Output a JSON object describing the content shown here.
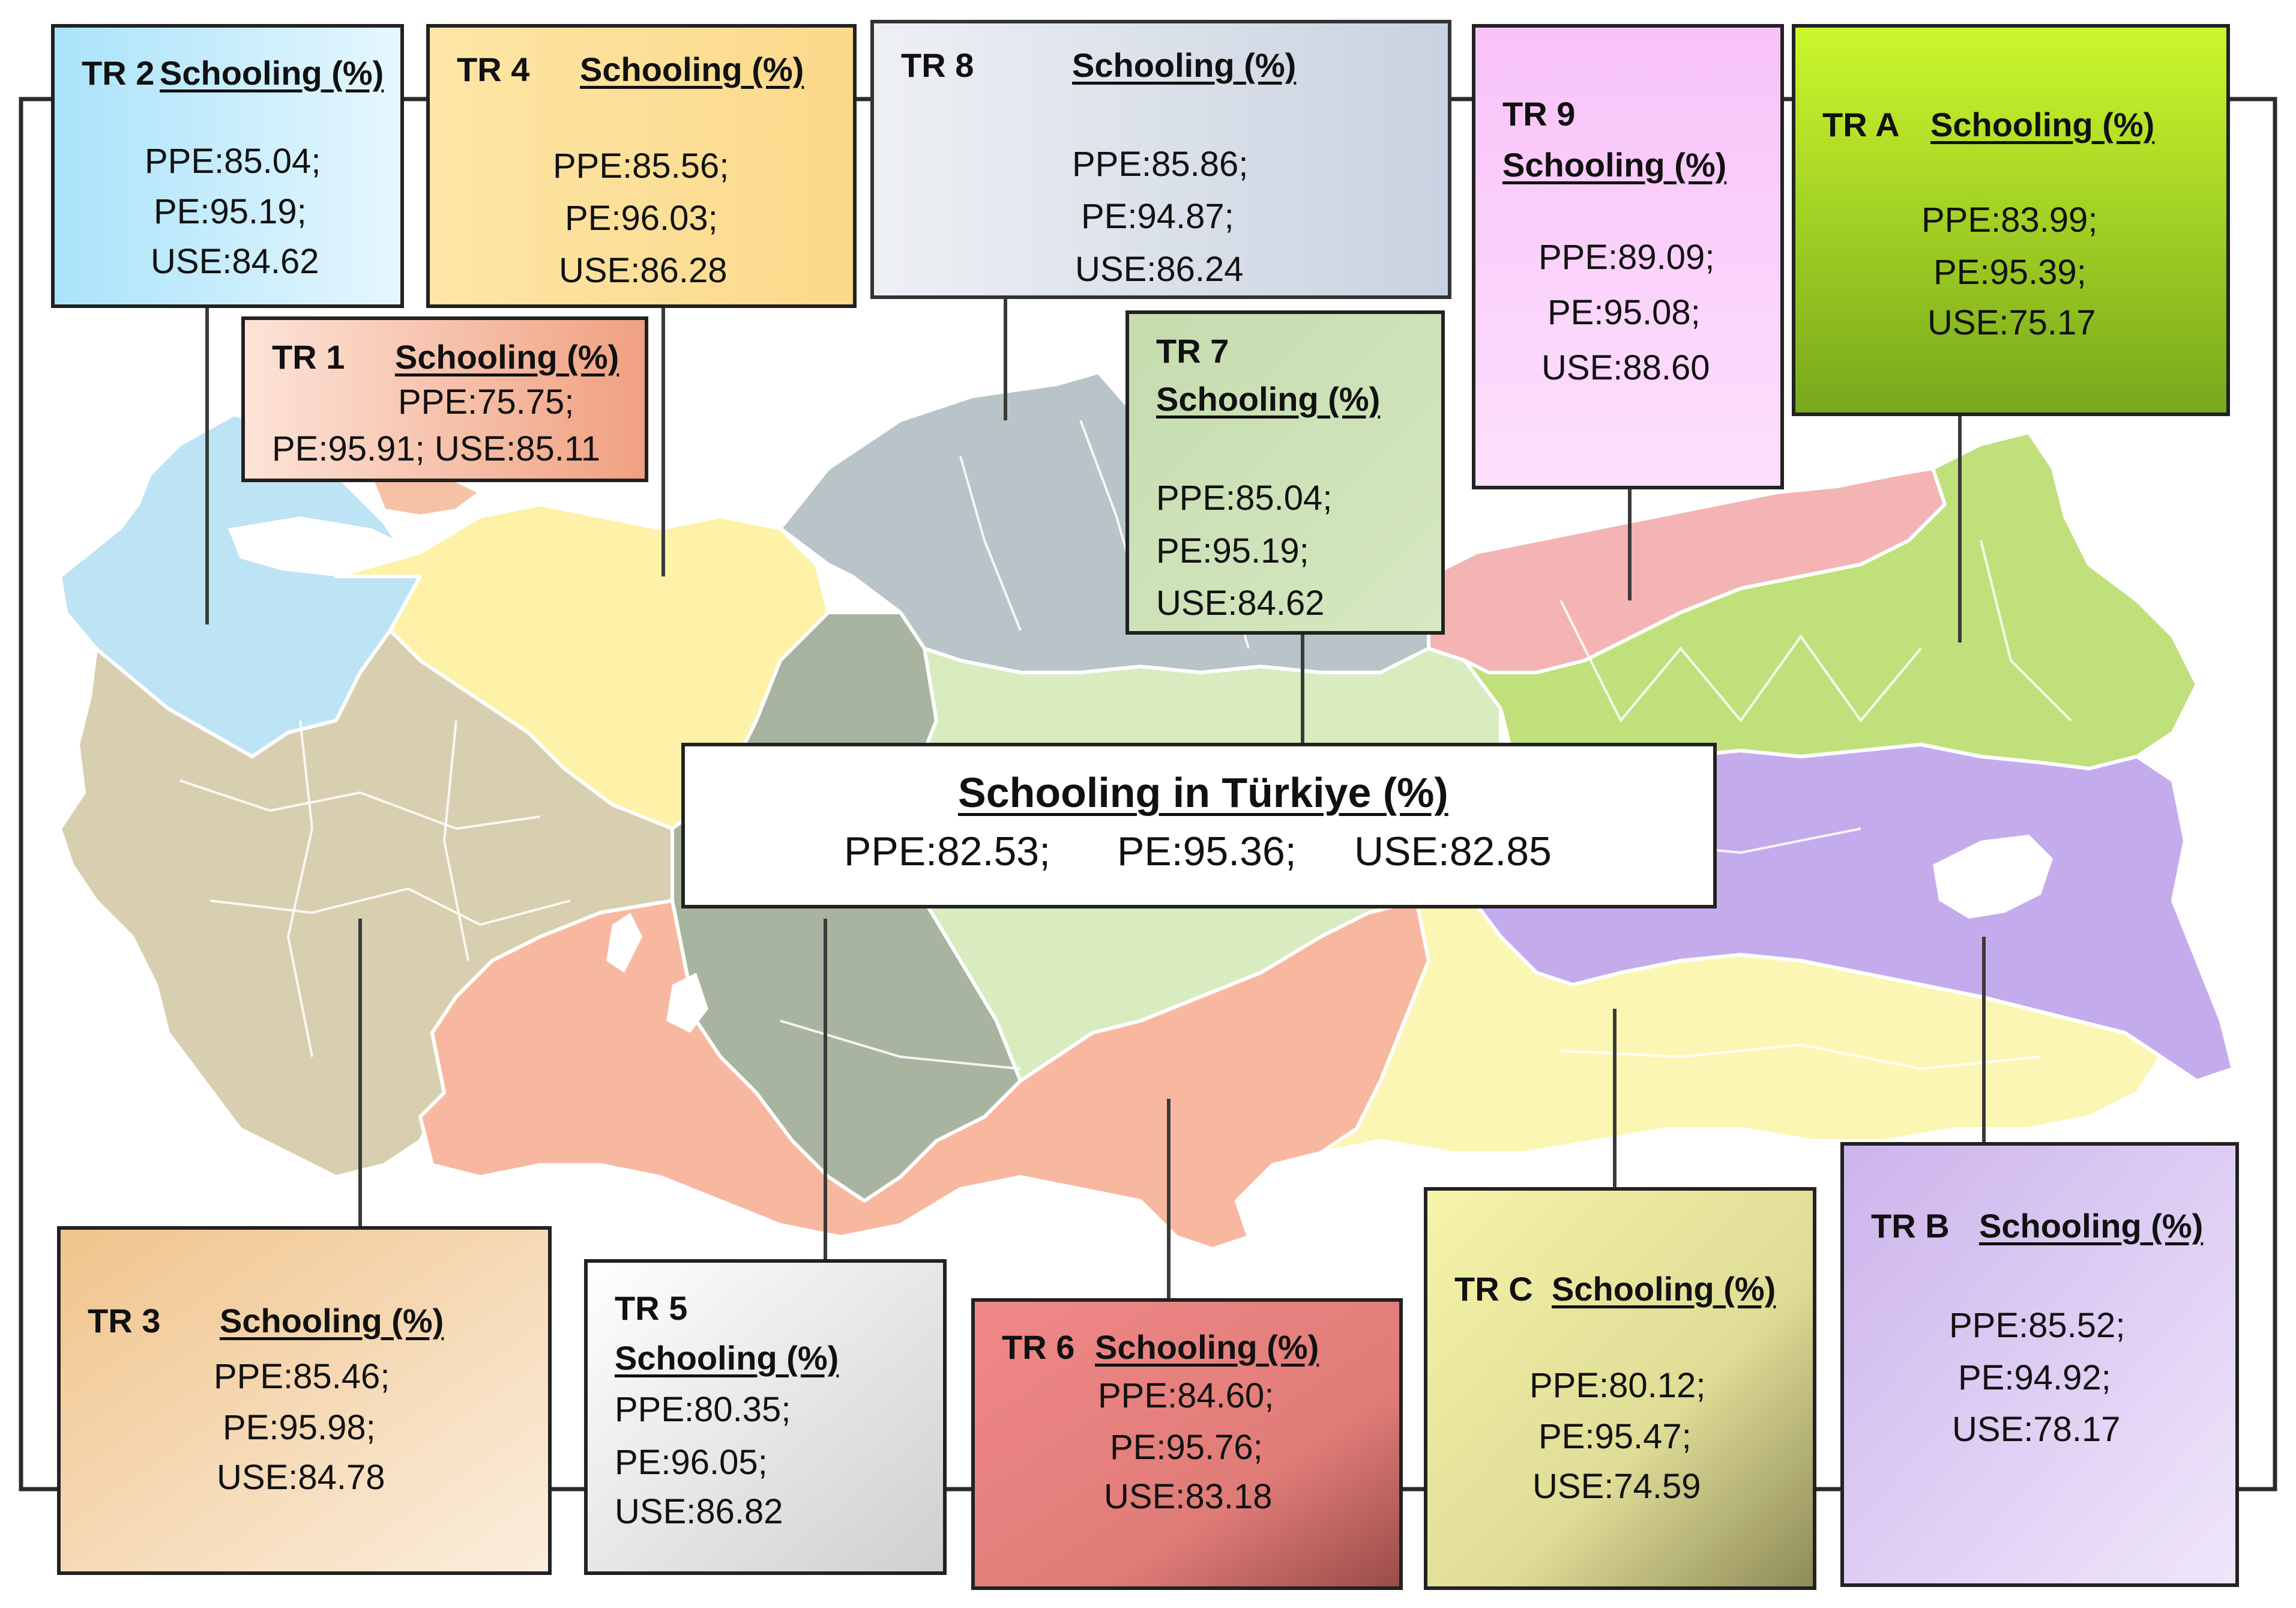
{
  "national": {
    "title": "Schooling in Türkiye (%)",
    "ppe": "PPE:82.53;",
    "pe": "PE:95.36;",
    "use": "USE:82.85"
  },
  "regions": {
    "tr1": {
      "code": "TR 1",
      "heading": "Schooling (%)",
      "line1": "PPE:75.75;",
      "line2": "PE:95.91; USE:85.11",
      "color": "#f6b49c"
    },
    "tr2": {
      "code": "TR 2",
      "heading": "Schooling (%)",
      "ppe": "PPE:85.04;",
      "pe": "PE:95.19;",
      "use": "USE:84.62",
      "color": "#a8dcf4"
    },
    "tr3": {
      "code": "TR 3",
      "heading": "Schooling (%)",
      "ppe": "PPE:85.46;",
      "pe": "PE:95.98;",
      "use": "USE:84.78",
      "color": "#f0c590"
    },
    "tr4": {
      "code": "TR 4",
      "heading": "Schooling (%)",
      "ppe": "PPE:85.56;",
      "pe": "PE:96.03;",
      "use": "USE:86.28",
      "color": "#fde39a"
    },
    "tr5": {
      "code": "TR 5",
      "heading": "Schooling (%)",
      "ppe": "PPE:80.35;",
      "pe": "PE:96.05;",
      "use": "USE:86.82",
      "color": "#d8d8d8"
    },
    "tr6": {
      "code": "TR 6",
      "heading": "Schooling (%)",
      "ppe": "PPE:84.60;",
      "pe": "PE:95.76;",
      "use": "USE:83.18",
      "color": "#e07a78"
    },
    "tr7": {
      "code": "TR 7",
      "heading": "Schooling (%)",
      "ppe": "PPE:85.04;",
      "pe": "PE:95.19;",
      "use": "USE:84.62",
      "color": "#c8e0b0"
    },
    "tr8": {
      "code": "TR 8",
      "heading": "Schooling (%)",
      "ppe": "PPE:85.86;",
      "pe": "PE:94.87;",
      "use": "USE:86.24",
      "color": "#d4dae4"
    },
    "tr9": {
      "code": "TR 9",
      "heading": "Schooling (%)",
      "ppe": "PPE:89.09;",
      "pe": "PE:95.08;",
      "use": "USE:88.60",
      "color": "#f8c4f8"
    },
    "tra": {
      "code": "TR A",
      "heading": "Schooling (%)",
      "ppe": "PPE:83.99;",
      "pe": "PE:95.39;",
      "use": "USE:75.17",
      "color": "#a4d61c"
    },
    "trb": {
      "code": "TR B",
      "heading": "Schooling (%)",
      "ppe": "PPE:85.52;",
      "pe": "PE:94.92;",
      "use": "USE:78.17",
      "color": "#d4c0ee"
    },
    "trc": {
      "code": "TR C",
      "heading": "Schooling (%)",
      "ppe": "PPE:80.12;",
      "pe": "PE:95.47;",
      "use": "USE:74.59",
      "color": "#dedc98"
    }
  }
}
